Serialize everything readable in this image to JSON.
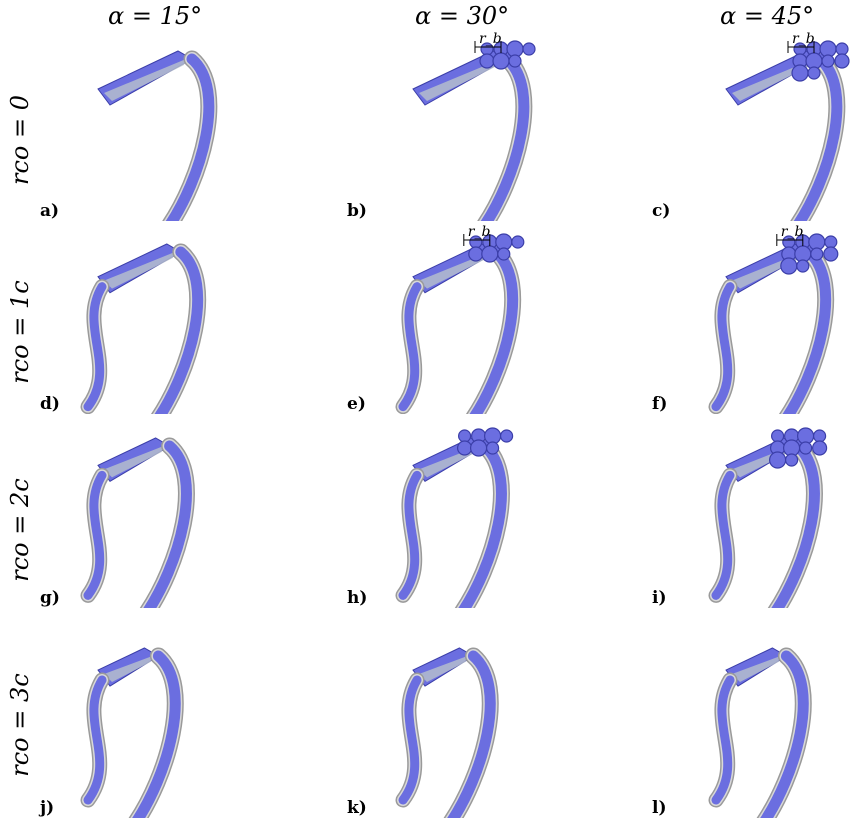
{
  "columns": [
    {
      "alpha": "α = 15°"
    },
    {
      "alpha": "α = 30°"
    },
    {
      "alpha": "α = 45°"
    }
  ],
  "rows": [
    {
      "label": "rco = 0"
    },
    {
      "label": "rco = 1c"
    },
    {
      "label": "rco = 2c"
    },
    {
      "label": "rco = 3c"
    }
  ],
  "panels": [
    {
      "tag": "a)",
      "rb": ""
    },
    {
      "tag": "b)",
      "rb": "r_b"
    },
    {
      "tag": "c)",
      "rb": "r_b"
    },
    {
      "tag": "d)",
      "rb": ""
    },
    {
      "tag": "e)",
      "rb": "r_b"
    },
    {
      "tag": "f)",
      "rb": "r_b"
    },
    {
      "tag": "g)",
      "rb": ""
    },
    {
      "tag": "h)",
      "rb": ""
    },
    {
      "tag": "i)",
      "rb": ""
    },
    {
      "tag": "j)",
      "rb": ""
    },
    {
      "tag": "k)",
      "rb": ""
    },
    {
      "tag": "l)",
      "rb": ""
    }
  ],
  "colors": {
    "vortex": "#6b6ee0",
    "vortex_dark": "#3b3ea8",
    "iso_surface": "#d8d8d8",
    "iso_edge": "#9a9a9a"
  }
}
